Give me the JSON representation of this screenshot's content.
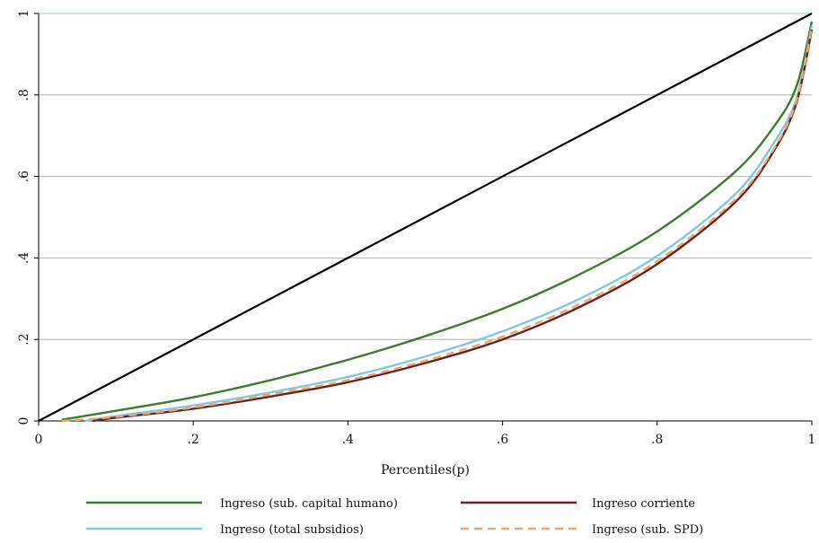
{
  "chart_data": {
    "type": "line",
    "title": "",
    "xlabel": "Percentiles(p)",
    "ylabel": "",
    "xlim": [
      0,
      1
    ],
    "ylim": [
      0,
      1
    ],
    "xticks": [
      0,
      0.2,
      0.4,
      0.6,
      0.8,
      1
    ],
    "xtick_labels": [
      "0",
      ".2",
      ".4",
      ".6",
      ".8",
      "1"
    ],
    "yticks": [
      0,
      0.2,
      0.4,
      0.6,
      0.8,
      1
    ],
    "ytick_labels": [
      "0",
      ".2",
      ".4",
      ".6",
      ".8",
      "1"
    ],
    "grid": "horizontal",
    "legend_position": "bottom",
    "equality_line": {
      "x": [
        0,
        1
      ],
      "y": [
        0,
        1
      ],
      "color": "#000000"
    },
    "series": [
      {
        "name": "Ingreso (sub. capital humano)",
        "color": "#3a7d2c",
        "style": "solid",
        "x": [
          0.03,
          0.1,
          0.2,
          0.3,
          0.4,
          0.5,
          0.6,
          0.7,
          0.8,
          0.9,
          0.95,
          0.98,
          1.0
        ],
        "y": [
          0.003,
          0.025,
          0.058,
          0.1,
          0.15,
          0.208,
          0.275,
          0.36,
          0.465,
          0.61,
          0.72,
          0.82,
          0.98
        ]
      },
      {
        "name": "Ingreso corriente",
        "color": "#6b1f1f",
        "style": "solid",
        "x": [
          0.07,
          0.1,
          0.2,
          0.3,
          0.4,
          0.5,
          0.6,
          0.7,
          0.8,
          0.9,
          0.95,
          0.98,
          1.0
        ],
        "y": [
          0.0,
          0.008,
          0.03,
          0.06,
          0.095,
          0.142,
          0.2,
          0.28,
          0.385,
          0.535,
          0.66,
          0.78,
          0.96
        ]
      },
      {
        "name": "Ingreso (total subsidios)",
        "color": "#7ec8e3",
        "style": "solid",
        "x": [
          0.06,
          0.1,
          0.2,
          0.3,
          0.4,
          0.5,
          0.6,
          0.7,
          0.8,
          0.9,
          0.95,
          0.98,
          1.0
        ],
        "y": [
          0.0,
          0.012,
          0.038,
          0.07,
          0.108,
          0.158,
          0.22,
          0.3,
          0.405,
          0.555,
          0.68,
          0.79,
          0.97
        ]
      },
      {
        "name": "Ingreso (sub. SPD)",
        "color": "#f4a460",
        "style": "dashed",
        "x": [
          0.03,
          0.1,
          0.2,
          0.3,
          0.4,
          0.5,
          0.6,
          0.7,
          0.8,
          0.9,
          0.95,
          0.98,
          1.0
        ],
        "y": [
          0.0,
          0.01,
          0.033,
          0.065,
          0.1,
          0.148,
          0.207,
          0.287,
          0.392,
          0.542,
          0.665,
          0.785,
          0.965
        ]
      }
    ],
    "legend_order": [
      0,
      1,
      2,
      3
    ]
  }
}
